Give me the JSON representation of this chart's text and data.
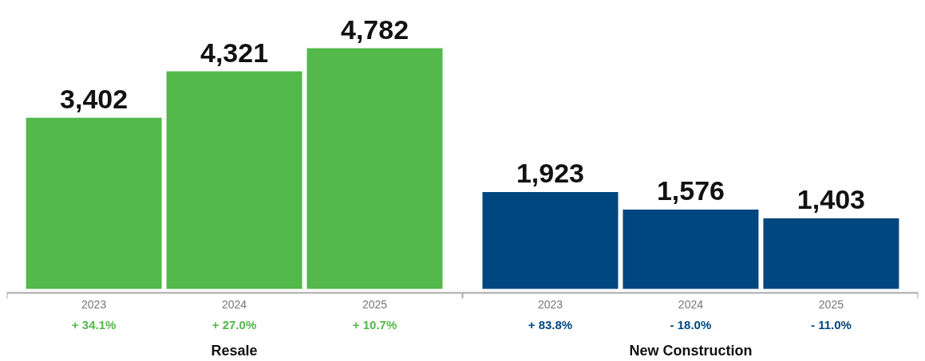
{
  "chart_data": {
    "type": "bar",
    "categories": [
      "2023",
      "2024",
      "2025",
      "2023",
      "2024",
      "2025"
    ],
    "series": [
      {
        "color": "#52b94a",
        "values": [
          3402,
          4321,
          4782,
          null,
          null,
          null
        ],
        "value_labels": [
          "3,402",
          "4,321",
          "4,782",
          null,
          null,
          null
        ]
      },
      {
        "color": "#00467f",
        "values": [
          null,
          null,
          null,
          1923,
          1576,
          1403
        ],
        "value_labels": [
          null,
          null,
          null,
          "1,923",
          "1,576",
          "1,403"
        ]
      }
    ],
    "annotations": [
      "+ 34.1%",
      "+ 27.0%",
      "+ 10.7%",
      "+ 83.8%",
      "- 18.0%",
      "- 11.0%",
      "Resale",
      "New Construction"
    ],
    "grid": false
  }
}
